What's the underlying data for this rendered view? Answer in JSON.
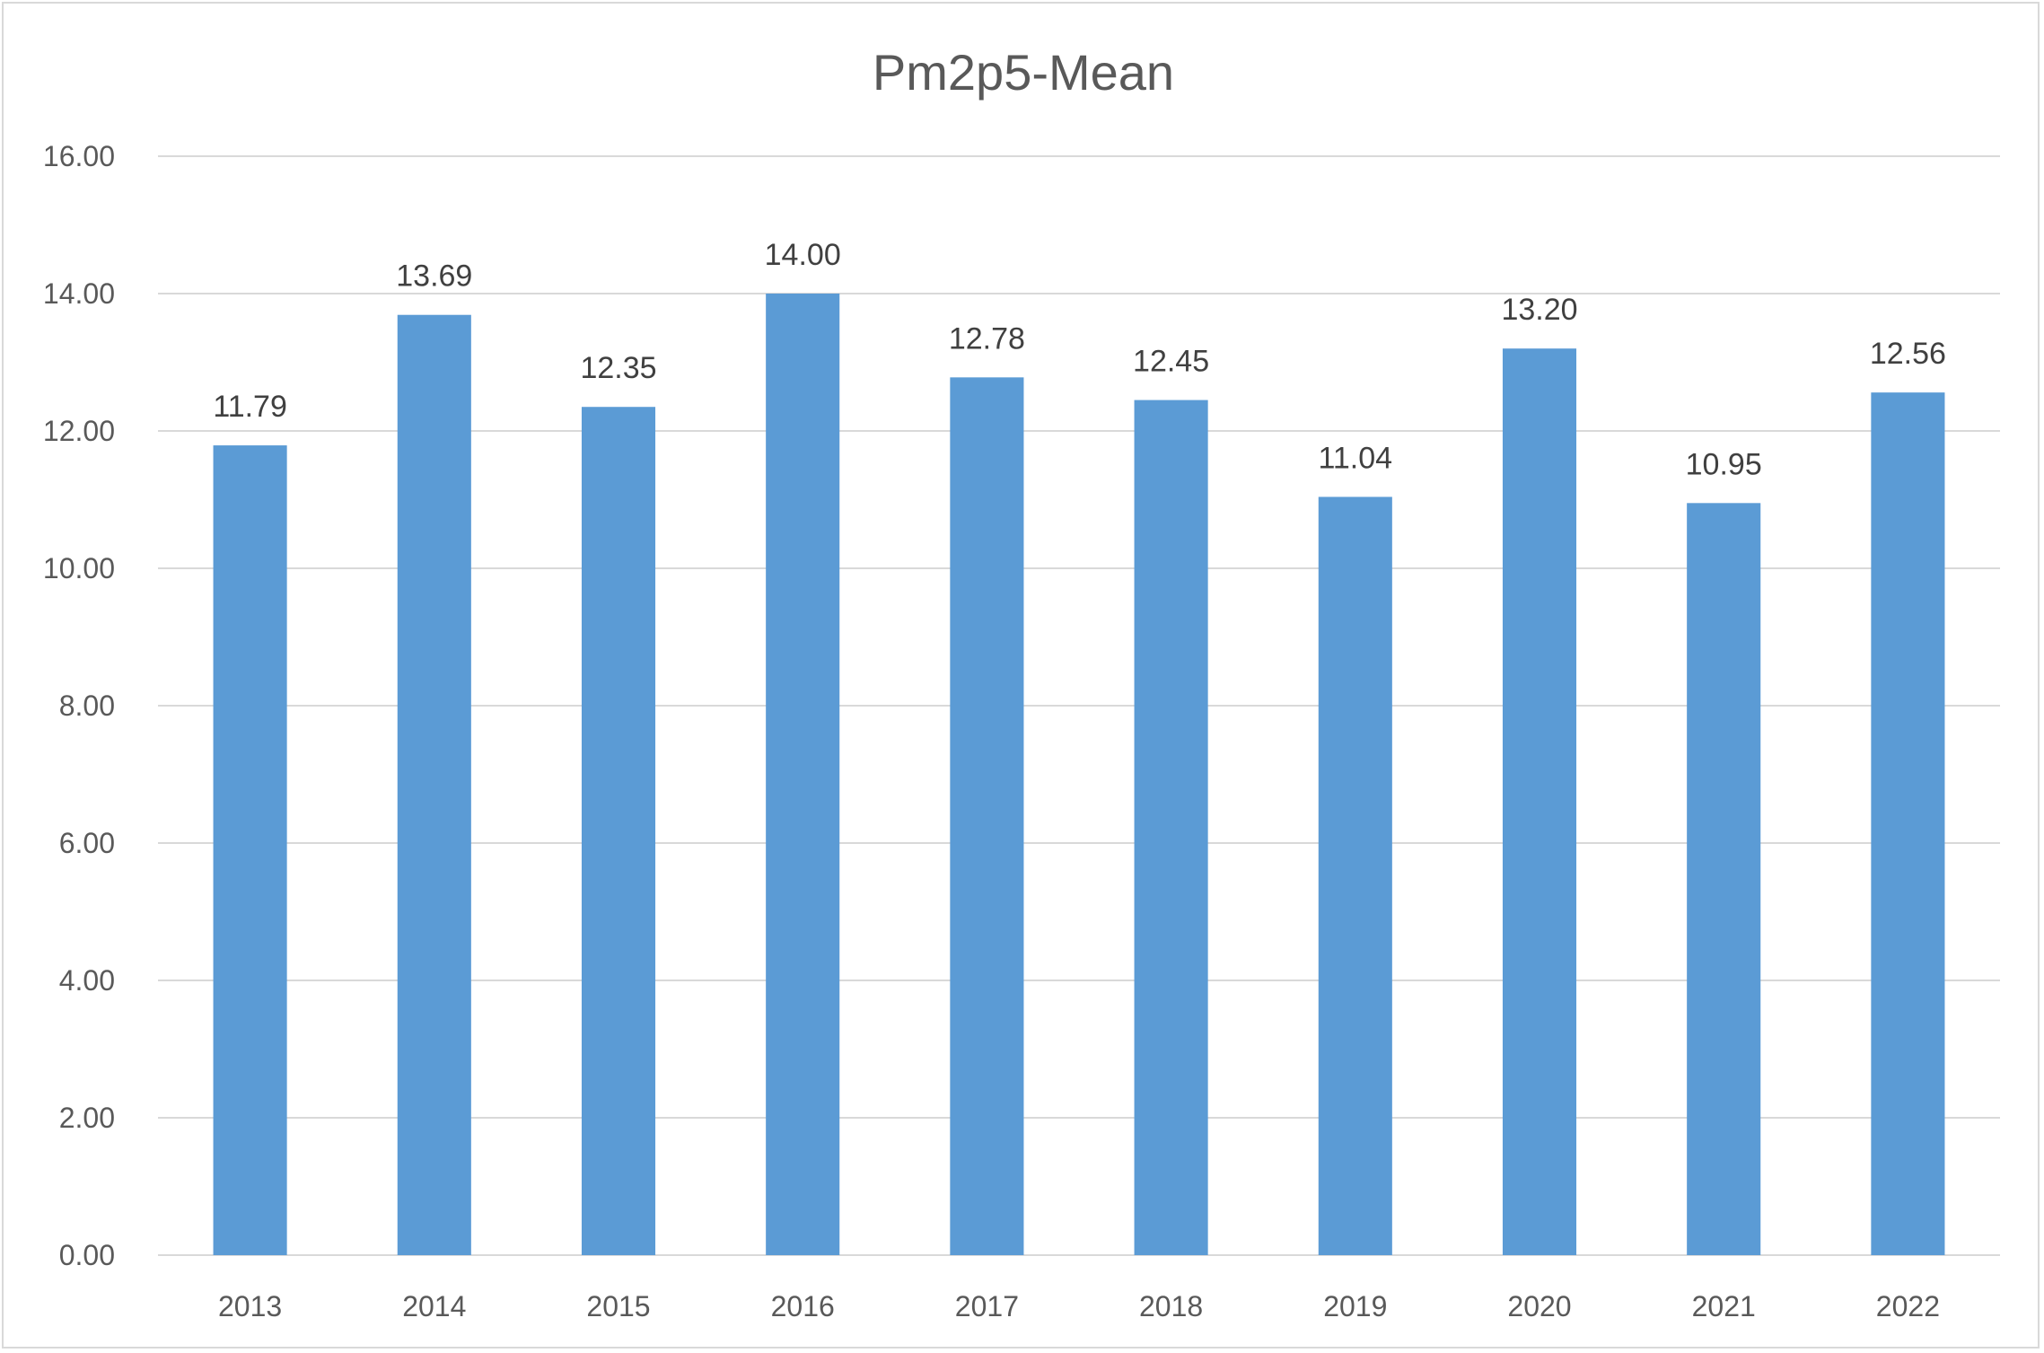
{
  "chart_data": {
    "type": "bar",
    "title": "Pm2p5-Mean",
    "categories": [
      "2013",
      "2014",
      "2015",
      "2016",
      "2017",
      "2018",
      "2019",
      "2020",
      "2021",
      "2022"
    ],
    "values": [
      11.79,
      13.69,
      12.35,
      14.0,
      12.78,
      12.45,
      11.04,
      13.2,
      10.95,
      12.56
    ],
    "value_labels": [
      "11.79",
      "13.69",
      "12.35",
      "14.00",
      "12.78",
      "12.45",
      "11.04",
      "13.20",
      "10.95",
      "12.56"
    ],
    "y_ticks": [
      "0.00",
      "2.00",
      "4.00",
      "6.00",
      "8.00",
      "10.00",
      "12.00",
      "14.00",
      "16.00"
    ],
    "xlabel": "",
    "ylabel": "",
    "ylim": [
      0,
      16
    ],
    "grid": true,
    "legend": "none",
    "bar_color": "#5b9bd5",
    "grid_color": "#d9d9d9"
  }
}
